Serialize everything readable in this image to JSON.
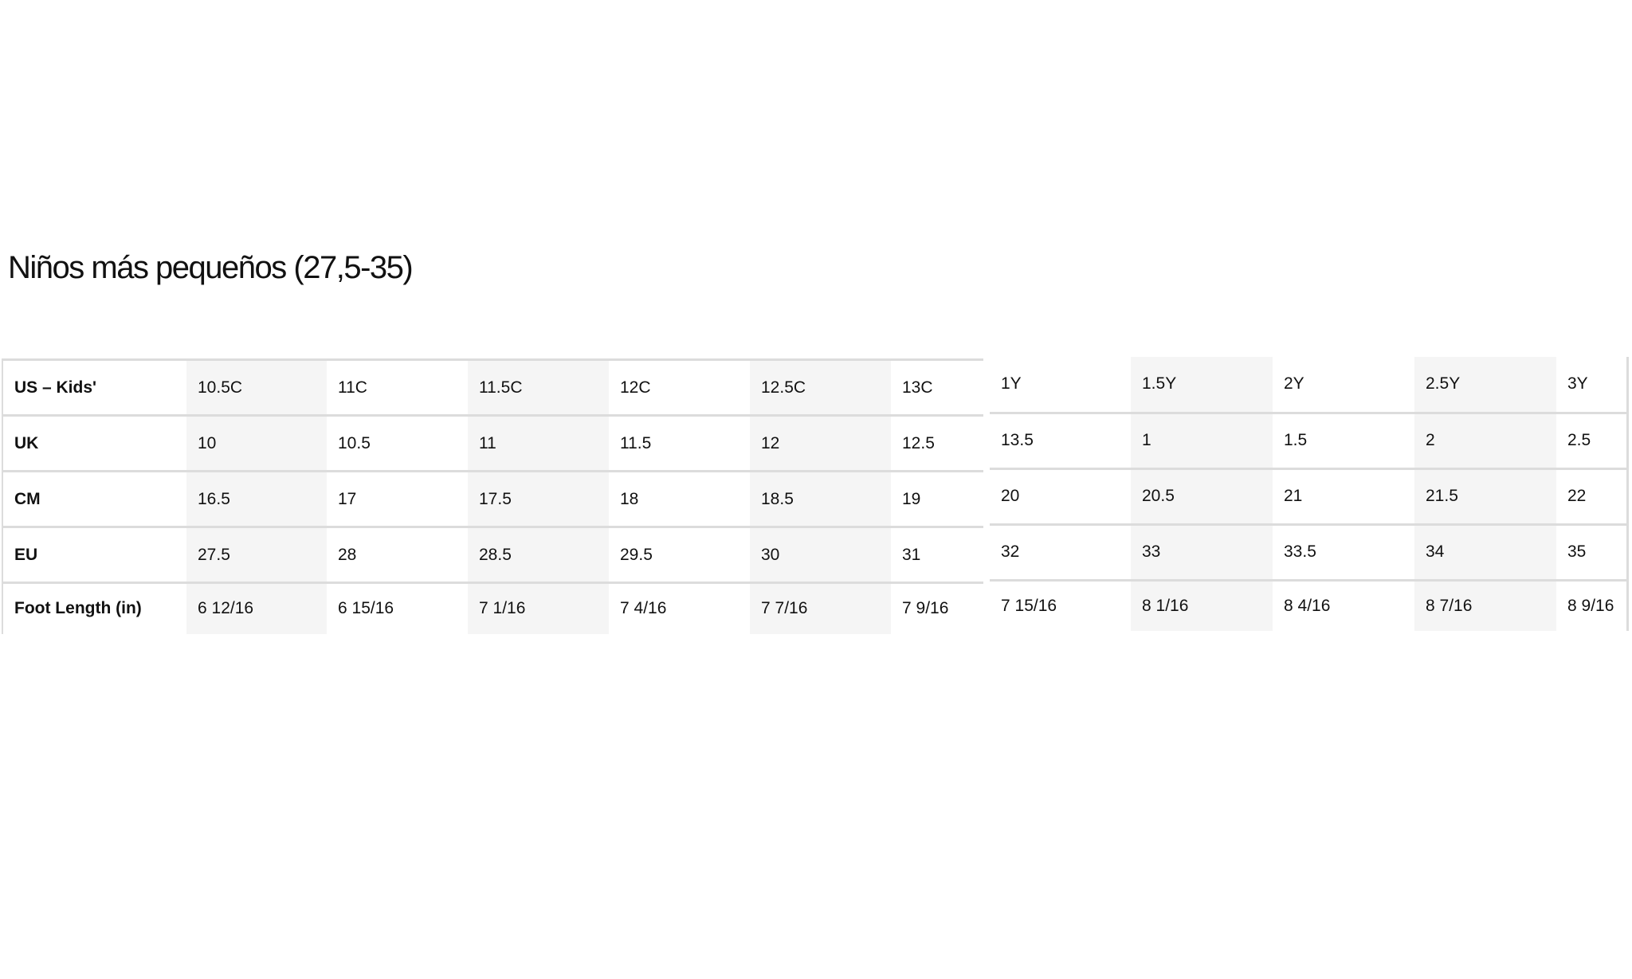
{
  "title": "Niños más pequeños (27,5-35)",
  "shade_color": "#f5f5f5",
  "border_color": "#dcdcdc",
  "table": {
    "row_labels": [
      "US – Kids'",
      "UK",
      "CM",
      "EU",
      "Foot Length (in)"
    ],
    "left_columns": [
      [
        "10.5C",
        "10",
        "16.5",
        "27.5",
        "6 12/16"
      ],
      [
        "11C",
        "10.5",
        "17",
        "28",
        "6 15/16"
      ],
      [
        "11.5C",
        "11",
        "17.5",
        "28.5",
        "7 1/16"
      ],
      [
        "12C",
        "11.5",
        "18",
        "29.5",
        "7 4/16"
      ],
      [
        "12.5C",
        "12",
        "18.5",
        "30",
        "7 7/16"
      ],
      [
        "13C",
        "12.5",
        "19",
        "31",
        "7 9/16"
      ]
    ],
    "right_columns": [
      [
        "1Y",
        "13.5",
        "20",
        "32",
        "7 15/16"
      ],
      [
        "1.5Y",
        "1",
        "20.5",
        "33",
        "8 1/16"
      ],
      [
        "2Y",
        "1.5",
        "21",
        "33.5",
        "8 4/16"
      ],
      [
        "2.5Y",
        "2",
        "21.5",
        "34",
        "8 7/16"
      ],
      [
        "3Y",
        "2.5",
        "22",
        "35",
        "8 9/16"
      ]
    ]
  }
}
